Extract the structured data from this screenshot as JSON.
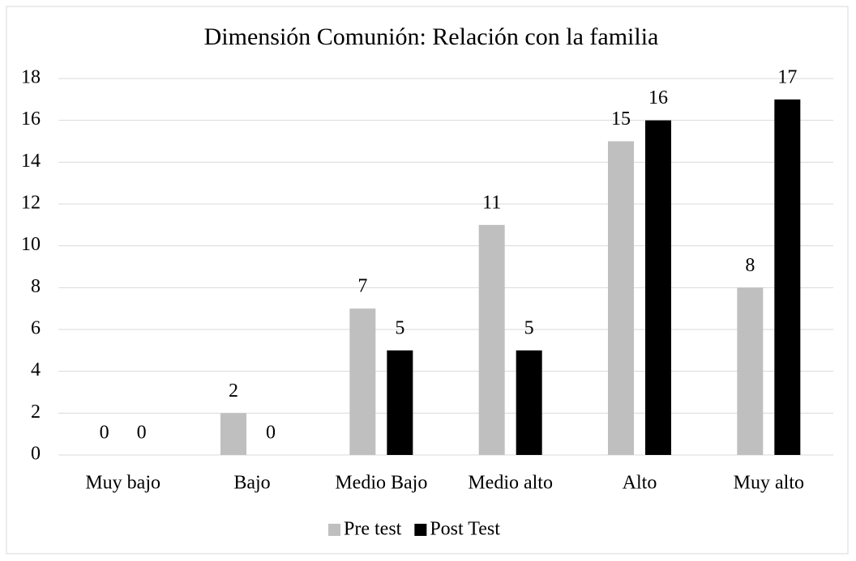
{
  "chart_data": {
    "type": "bar",
    "title": "Dimensión Comunión: Relación con la familia",
    "categories": [
      "Muy bajo",
      "Bajo",
      "Medio Bajo",
      "Medio alto",
      "Alto",
      "Muy alto"
    ],
    "series": [
      {
        "name": "Pre test",
        "color": "#bfbfbf",
        "values": [
          0,
          2,
          7,
          11,
          15,
          8
        ]
      },
      {
        "name": "Post Test",
        "color": "#000000",
        "values": [
          0,
          0,
          5,
          5,
          16,
          17
        ]
      }
    ],
    "ylim": [
      0,
      18
    ],
    "yticks": [
      0,
      2,
      4,
      6,
      8,
      10,
      12,
      14,
      16,
      18
    ],
    "grid": true,
    "legend": "bottom"
  }
}
